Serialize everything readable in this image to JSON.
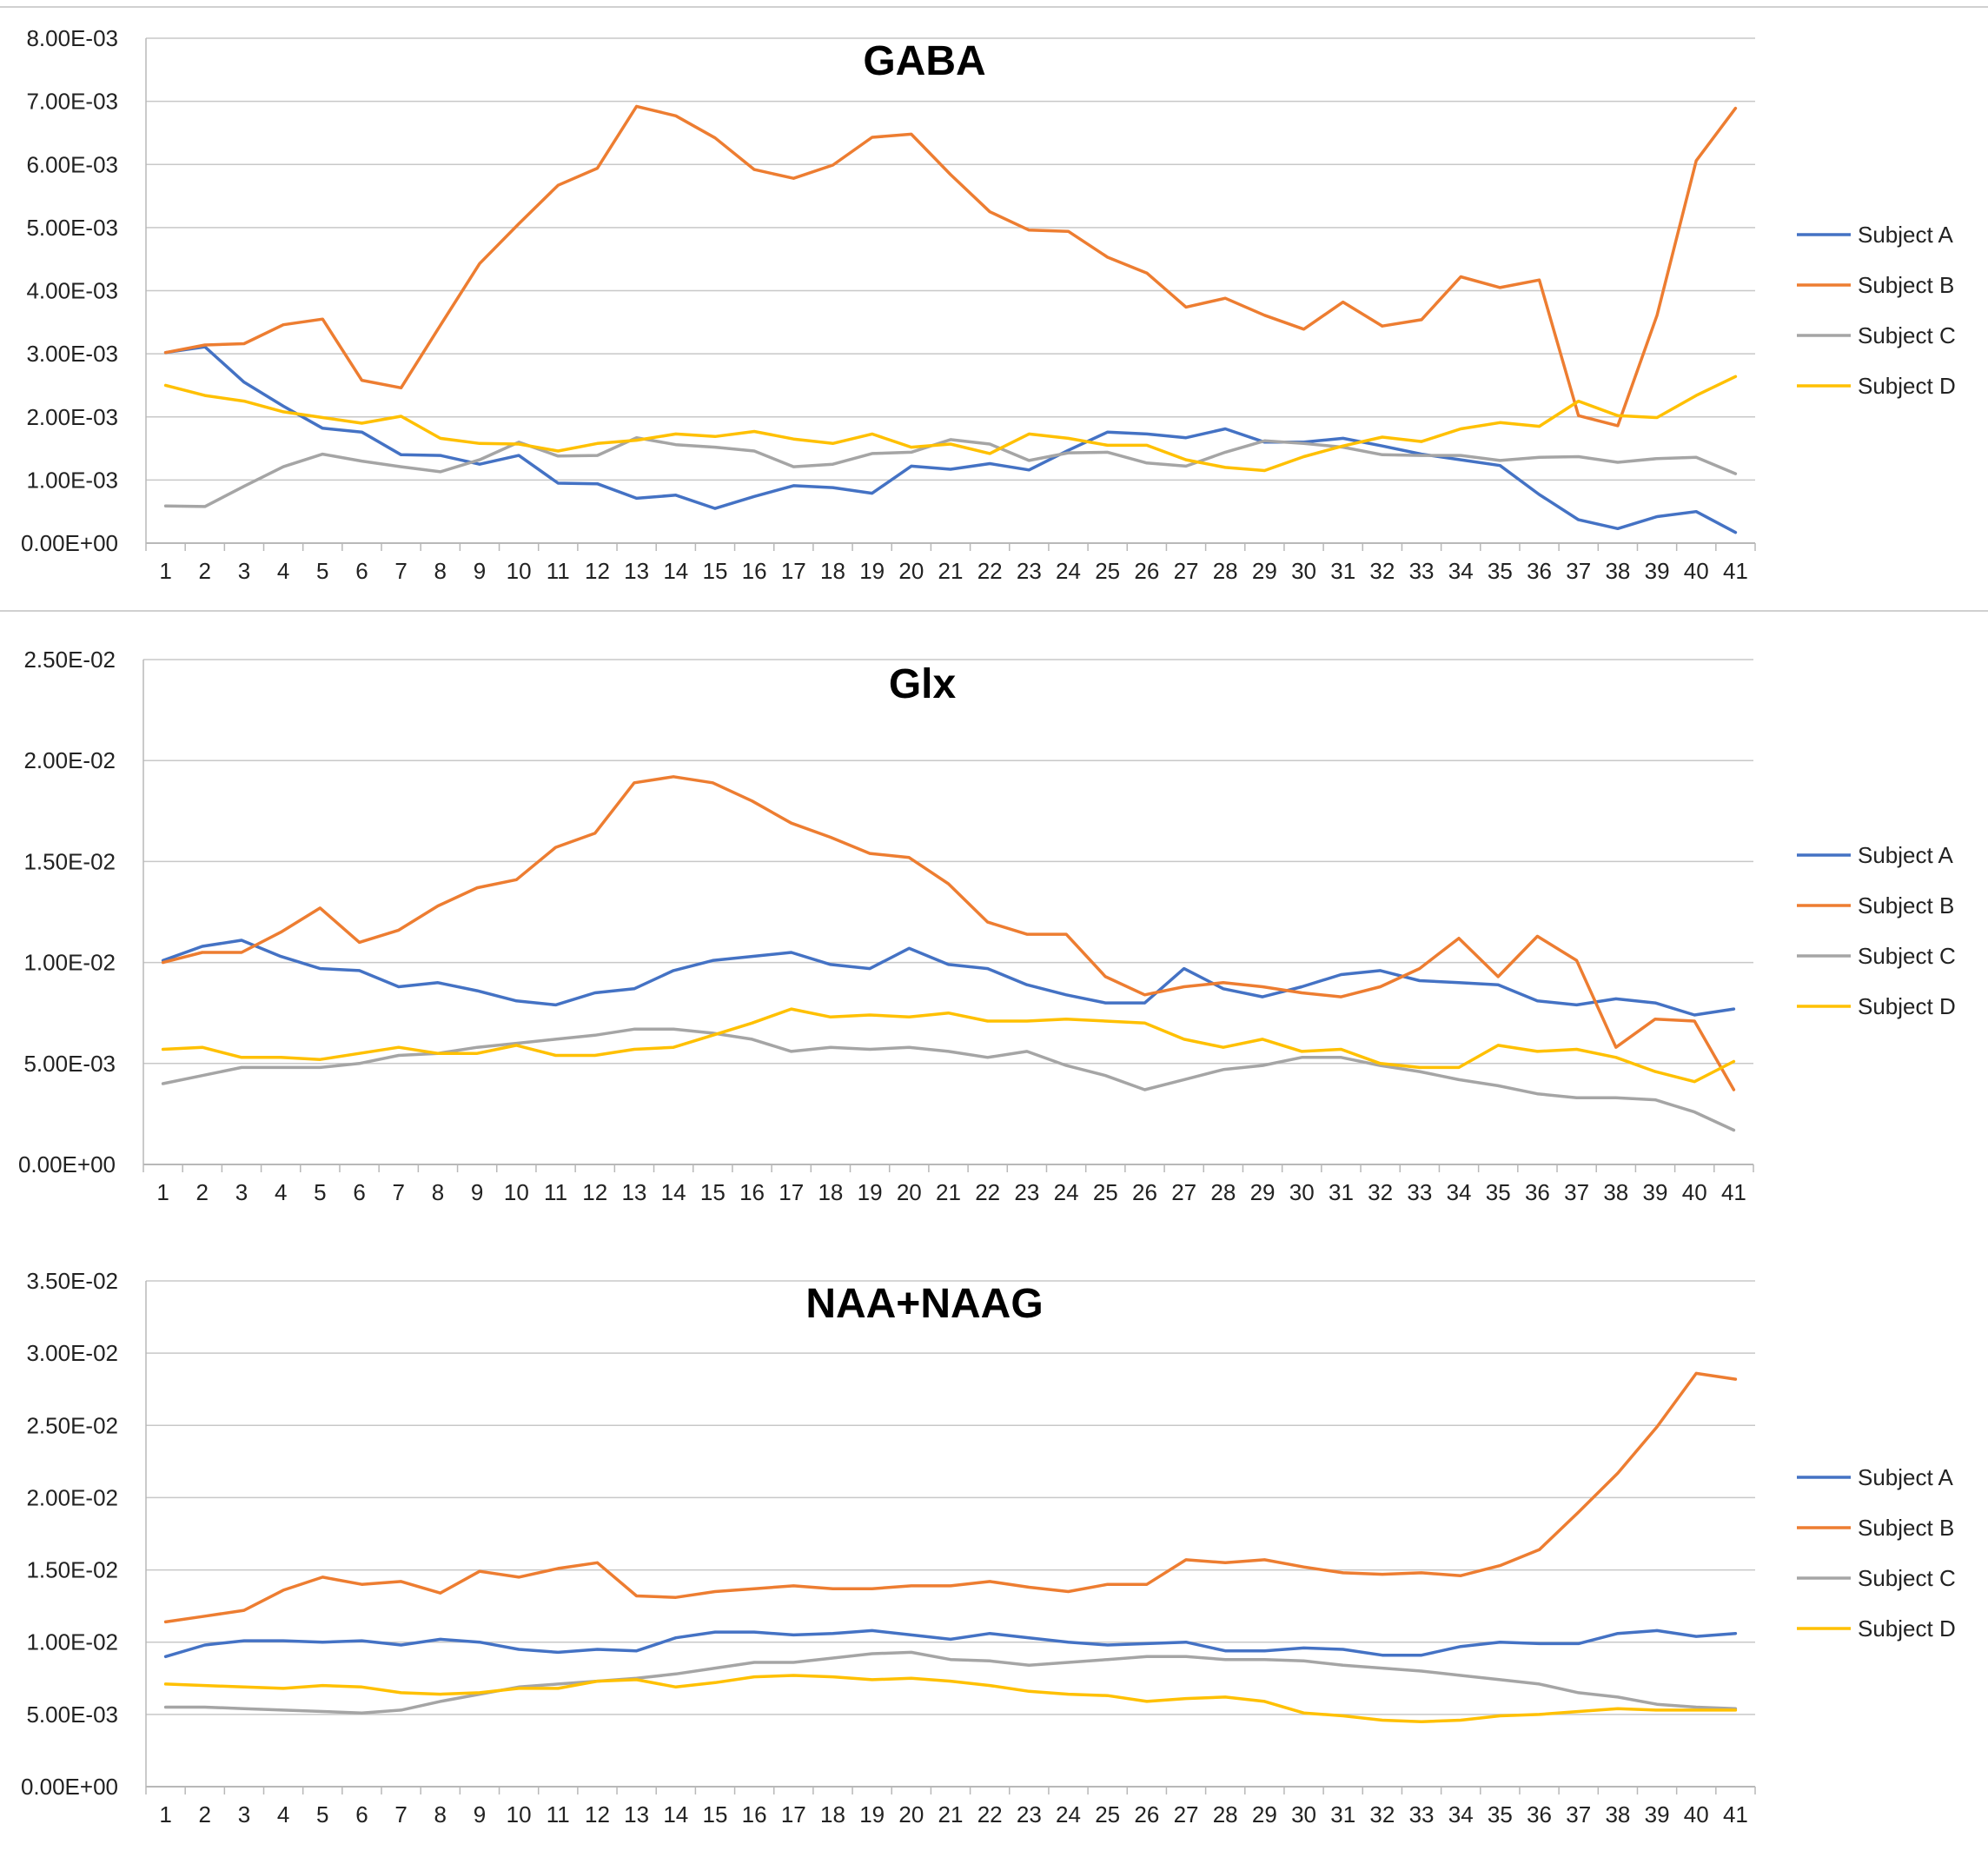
{
  "chart_data": [
    {
      "type": "line",
      "title": "GABA",
      "xlabel": "",
      "ylabel": "",
      "ylim": [
        0,
        0.008
      ],
      "yticks": [
        "0.00E+00",
        "1.00E-03",
        "2.00E-03",
        "3.00E-03",
        "4.00E-03",
        "5.00E-03",
        "6.00E-03",
        "7.00E-03",
        "8.00E-03"
      ],
      "x": [
        1,
        2,
        3,
        4,
        5,
        6,
        7,
        8,
        9,
        10,
        11,
        12,
        13,
        14,
        15,
        16,
        17,
        18,
        19,
        20,
        21,
        22,
        23,
        24,
        25,
        26,
        27,
        28,
        29,
        30,
        31,
        32,
        33,
        34,
        35,
        36,
        37,
        38,
        39,
        40,
        41
      ],
      "legend_position": "right",
      "grid": true,
      "series": [
        {
          "name": "Subject A",
          "color": "#4472C4",
          "values": [
            0.00302,
            0.00311,
            0.00255,
            0.00217,
            0.00182,
            0.00176,
            0.0014,
            0.00139,
            0.00125,
            0.00139,
            0.00095,
            0.00094,
            0.00071,
            0.00076,
            0.00055,
            0.00074,
            0.00091,
            0.00088,
            0.00079,
            0.00122,
            0.00117,
            0.00126,
            0.00116,
            0.00147,
            0.00176,
            0.00173,
            0.00167,
            0.00181,
            0.0016,
            0.0016,
            0.00166,
            0.00154,
            0.00141,
            0.00132,
            0.00123,
            0.00077,
            0.00037,
            0.00023,
            0.00042,
            0.0005,
            0.00017
          ]
        },
        {
          "name": "Subject B",
          "color": "#ED7D31",
          "values": [
            0.00302,
            0.00314,
            0.00316,
            0.00346,
            0.00355,
            0.00258,
            0.00246,
            0.00345,
            0.00443,
            0.00506,
            0.00567,
            0.00594,
            0.00692,
            0.00677,
            0.00642,
            0.00592,
            0.00578,
            0.00599,
            0.00643,
            0.00648,
            0.00584,
            0.00525,
            0.00496,
            0.00494,
            0.00453,
            0.00428,
            0.00374,
            0.00388,
            0.00361,
            0.00339,
            0.00382,
            0.00344,
            0.00354,
            0.00422,
            0.00405,
            0.00417,
            0.00202,
            0.00186,
            0.00361,
            0.00606,
            0.00689
          ]
        },
        {
          "name": "Subject C",
          "color": "#A5A5A5",
          "values": [
            0.00059,
            0.00058,
            0.0009,
            0.00121,
            0.00141,
            0.0013,
            0.00121,
            0.00113,
            0.00132,
            0.0016,
            0.00138,
            0.00139,
            0.00167,
            0.00156,
            0.00152,
            0.00146,
            0.00121,
            0.00125,
            0.00142,
            0.00144,
            0.00164,
            0.00157,
            0.00131,
            0.00143,
            0.00144,
            0.00127,
            0.00122,
            0.00144,
            0.00162,
            0.00158,
            0.00152,
            0.0014,
            0.00139,
            0.00139,
            0.00131,
            0.00136,
            0.00137,
            0.00128,
            0.00134,
            0.00136,
            0.0011
          ]
        },
        {
          "name": "Subject D",
          "color": "#FFC000",
          "values": [
            0.0025,
            0.00234,
            0.00225,
            0.00208,
            0.00199,
            0.0019,
            0.00201,
            0.00166,
            0.00158,
            0.00157,
            0.00146,
            0.00158,
            0.00163,
            0.00173,
            0.00169,
            0.00177,
            0.00165,
            0.00158,
            0.00173,
            0.00152,
            0.00157,
            0.00142,
            0.00173,
            0.00166,
            0.00155,
            0.00155,
            0.00132,
            0.0012,
            0.00115,
            0.00137,
            0.00154,
            0.00168,
            0.00161,
            0.00181,
            0.00191,
            0.00185,
            0.00225,
            0.00202,
            0.00199,
            0.00234,
            0.00264
          ]
        }
      ]
    },
    {
      "type": "line",
      "title": "Glx",
      "xlabel": "",
      "ylabel": "",
      "ylim": [
        0,
        0.025
      ],
      "yticks": [
        "0.00E+00",
        "5.00E-03",
        "1.00E-02",
        "1.50E-02",
        "2.00E-02",
        "2.50E-02"
      ],
      "x": [
        1,
        2,
        3,
        4,
        5,
        6,
        7,
        8,
        9,
        10,
        11,
        12,
        13,
        14,
        15,
        16,
        17,
        18,
        19,
        20,
        21,
        22,
        23,
        24,
        25,
        26,
        27,
        28,
        29,
        30,
        31,
        32,
        33,
        34,
        35,
        36,
        37,
        38,
        39,
        40,
        41
      ],
      "legend_position": "right",
      "grid": true,
      "series": [
        {
          "name": "Subject A",
          "color": "#4472C4",
          "values": [
            0.0101,
            0.0108,
            0.0111,
            0.0103,
            0.0097,
            0.0096,
            0.0088,
            0.009,
            0.0086,
            0.0081,
            0.0079,
            0.0085,
            0.0087,
            0.0096,
            0.0101,
            0.0103,
            0.0105,
            0.0099,
            0.0097,
            0.0107,
            0.0099,
            0.0097,
            0.0089,
            0.0084,
            0.008,
            0.008,
            0.0097,
            0.0087,
            0.0083,
            0.0088,
            0.0094,
            0.0096,
            0.0091,
            0.009,
            0.0089,
            0.0081,
            0.0079,
            0.0082,
            0.008,
            0.0074,
            0.0077
          ]
        },
        {
          "name": "Subject B",
          "color": "#ED7D31",
          "values": [
            0.01,
            0.0105,
            0.0105,
            0.0115,
            0.0127,
            0.011,
            0.0116,
            0.0128,
            0.0137,
            0.0141,
            0.0157,
            0.0164,
            0.0189,
            0.0192,
            0.0189,
            0.018,
            0.0169,
            0.0162,
            0.0154,
            0.0152,
            0.0139,
            0.012,
            0.0114,
            0.0114,
            0.0093,
            0.0084,
            0.0088,
            0.009,
            0.0088,
            0.0085,
            0.0083,
            0.0088,
            0.0097,
            0.0112,
            0.0093,
            0.0113,
            0.0101,
            0.0058,
            0.0072,
            0.0071,
            0.0037
          ]
        },
        {
          "name": "Subject C",
          "color": "#A5A5A5",
          "values": [
            0.004,
            0.0044,
            0.0048,
            0.0048,
            0.0048,
            0.005,
            0.0054,
            0.0055,
            0.0058,
            0.006,
            0.0062,
            0.0064,
            0.0067,
            0.0067,
            0.0065,
            0.0062,
            0.0056,
            0.0058,
            0.0057,
            0.0058,
            0.0056,
            0.0053,
            0.0056,
            0.0049,
            0.0044,
            0.0037,
            0.0042,
            0.0047,
            0.0049,
            0.0053,
            0.0053,
            0.0049,
            0.0046,
            0.0042,
            0.0039,
            0.0035,
            0.0033,
            0.0033,
            0.0032,
            0.0026,
            0.0017
          ]
        },
        {
          "name": "Subject D",
          "color": "#FFC000",
          "values": [
            0.0057,
            0.0058,
            0.0053,
            0.0053,
            0.0052,
            0.0055,
            0.0058,
            0.0055,
            0.0055,
            0.0059,
            0.0054,
            0.0054,
            0.0057,
            0.0058,
            0.0064,
            0.007,
            0.0077,
            0.0073,
            0.0074,
            0.0073,
            0.0075,
            0.0071,
            0.0071,
            0.0072,
            0.0071,
            0.007,
            0.0062,
            0.0058,
            0.0062,
            0.0056,
            0.0057,
            0.005,
            0.0048,
            0.0048,
            0.0059,
            0.0056,
            0.0057,
            0.0053,
            0.0046,
            0.0041,
            0.0051
          ]
        }
      ]
    },
    {
      "type": "line",
      "title": "NAA+NAAG",
      "xlabel": "",
      "ylabel": "",
      "ylim": [
        0,
        0.035
      ],
      "yticks": [
        "0.00E+00",
        "5.00E-03",
        "1.00E-02",
        "1.50E-02",
        "2.00E-02",
        "2.50E-02",
        "3.00E-02",
        "3.50E-02"
      ],
      "x": [
        1,
        2,
        3,
        4,
        5,
        6,
        7,
        8,
        9,
        10,
        11,
        12,
        13,
        14,
        15,
        16,
        17,
        18,
        19,
        20,
        21,
        22,
        23,
        24,
        25,
        26,
        27,
        28,
        29,
        30,
        31,
        32,
        33,
        34,
        35,
        36,
        37,
        38,
        39,
        40,
        41
      ],
      "legend_position": "right",
      "grid": true,
      "series": [
        {
          "name": "Subject A",
          "color": "#4472C4",
          "values": [
            0.009,
            0.0098,
            0.0101,
            0.0101,
            0.01,
            0.0101,
            0.0098,
            0.0102,
            0.01,
            0.0095,
            0.0093,
            0.0095,
            0.0094,
            0.0103,
            0.0107,
            0.0107,
            0.0105,
            0.0106,
            0.0108,
            0.0105,
            0.0102,
            0.0106,
            0.0103,
            0.01,
            0.0098,
            0.0099,
            0.01,
            0.0094,
            0.0094,
            0.0096,
            0.0095,
            0.0091,
            0.0091,
            0.0097,
            0.01,
            0.0099,
            0.0099,
            0.0106,
            0.0108,
            0.0104,
            0.0106
          ]
        },
        {
          "name": "Subject B",
          "color": "#ED7D31",
          "values": [
            0.0114,
            0.0118,
            0.0122,
            0.0136,
            0.0145,
            0.014,
            0.0142,
            0.0134,
            0.0149,
            0.0145,
            0.0151,
            0.0155,
            0.0132,
            0.0131,
            0.0135,
            0.0137,
            0.0139,
            0.0137,
            0.0137,
            0.0139,
            0.0139,
            0.0142,
            0.0138,
            0.0135,
            0.014,
            0.014,
            0.0157,
            0.0155,
            0.0157,
            0.0152,
            0.0148,
            0.0147,
            0.0148,
            0.0146,
            0.0153,
            0.0164,
            0.019,
            0.0217,
            0.0249,
            0.0286,
            0.0282
          ]
        },
        {
          "name": "Subject C",
          "color": "#A5A5A5",
          "values": [
            0.0055,
            0.0055,
            0.0054,
            0.0053,
            0.0052,
            0.0051,
            0.0053,
            0.0059,
            0.0064,
            0.0069,
            0.0071,
            0.0073,
            0.0075,
            0.0078,
            0.0082,
            0.0086,
            0.0086,
            0.0089,
            0.0092,
            0.0093,
            0.0088,
            0.0087,
            0.0084,
            0.0086,
            0.0088,
            0.009,
            0.009,
            0.0088,
            0.0088,
            0.0087,
            0.0084,
            0.0082,
            0.008,
            0.0077,
            0.0074,
            0.0071,
            0.0065,
            0.0062,
            0.0057,
            0.0055,
            0.0054
          ]
        },
        {
          "name": "Subject D",
          "color": "#FFC000",
          "values": [
            0.0071,
            0.007,
            0.0069,
            0.0068,
            0.007,
            0.0069,
            0.0065,
            0.0064,
            0.0065,
            0.0068,
            0.0068,
            0.0073,
            0.0074,
            0.0069,
            0.0072,
            0.0076,
            0.0077,
            0.0076,
            0.0074,
            0.0075,
            0.0073,
            0.007,
            0.0066,
            0.0064,
            0.0063,
            0.0059,
            0.0061,
            0.0062,
            0.0059,
            0.0051,
            0.0049,
            0.0046,
            0.0045,
            0.0046,
            0.0049,
            0.005,
            0.0052,
            0.0054,
            0.0053,
            0.0053,
            0.0053
          ]
        }
      ]
    }
  ]
}
